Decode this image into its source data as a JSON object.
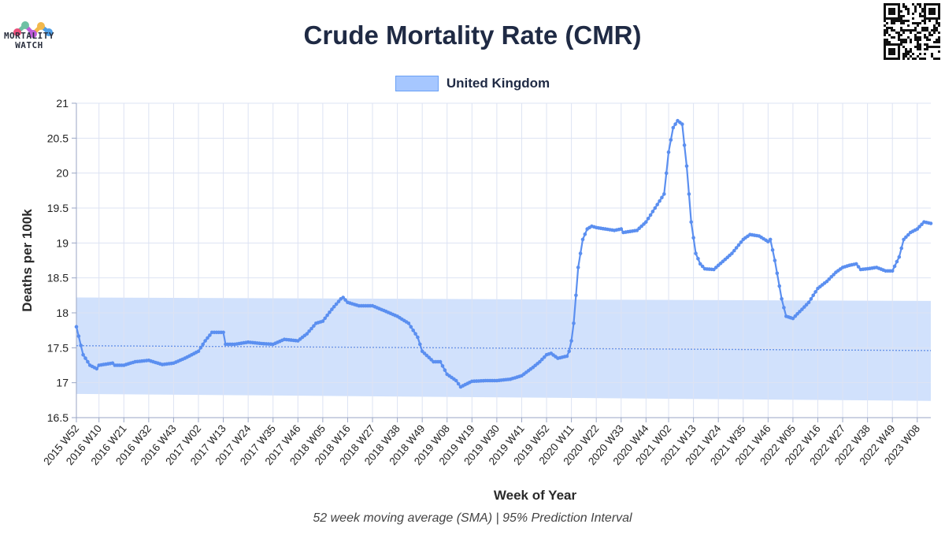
{
  "brand": {
    "logo_line1": "MORTALITY",
    "logo_line2": "WATCH",
    "qr_icon": "qr-code-icon"
  },
  "colors": {
    "series": "#5b8ff0",
    "band": "#c9dcfb",
    "baseline": "#6b95e8",
    "grid": "#dde3f3",
    "text": "#1f2a44"
  },
  "chart_data": {
    "type": "line",
    "title": "Crude Mortality Rate (CMR)",
    "xlabel": "Week of Year",
    "ylabel": "Deaths per 100k",
    "caption": "52 week moving average (SMA) | 95% Prediction Interval",
    "legend": {
      "position": "top-center",
      "entries": [
        "United Kingdom"
      ]
    },
    "grid": true,
    "ylim": [
      16.5,
      21
    ],
    "yticks": [
      "16.5",
      "17",
      "17.5",
      "18",
      "18.5",
      "19",
      "19.5",
      "20",
      "20.5",
      "21"
    ],
    "x_range": [
      "2015 W52",
      "2023 W14"
    ],
    "x_tick_labels": [
      "2015 W52",
      "2016 W10",
      "2016 W21",
      "2016 W32",
      "2016 W43",
      "2017 W02",
      "2017 W13",
      "2017 W24",
      "2017 W35",
      "2017 W46",
      "2018 W05",
      "2018 W16",
      "2018 W27",
      "2018 W38",
      "2018 W49",
      "2019 W08",
      "2019 W19",
      "2019 W30",
      "2019 W41",
      "2019 W52",
      "2020 W11",
      "2020 W22",
      "2020 W33",
      "2020 W44",
      "2021 W02",
      "2021 W13",
      "2021 W24",
      "2021 W35",
      "2021 W46",
      "2022 W05",
      "2022 W16",
      "2022 W27",
      "2022 W38",
      "2022 W49",
      "2023 W08"
    ],
    "series": [
      {
        "name": "United Kingdom",
        "anchors": [
          [
            "2015 W52",
            17.8
          ],
          [
            "2016 W03",
            17.4
          ],
          [
            "2016 W06",
            17.25
          ],
          [
            "2016 W09",
            17.2
          ],
          [
            "2016 W10",
            17.25
          ],
          [
            "2016 W16",
            17.28
          ],
          [
            "2016 W17",
            17.25
          ],
          [
            "2016 W21",
            17.25
          ],
          [
            "2016 W26",
            17.3
          ],
          [
            "2016 W32",
            17.32
          ],
          [
            "2016 W38",
            17.26
          ],
          [
            "2016 W43",
            17.28
          ],
          [
            "2016 W48",
            17.35
          ],
          [
            "2017 W02",
            17.45
          ],
          [
            "2017 W05",
            17.6
          ],
          [
            "2017 W08",
            17.72
          ],
          [
            "2017 W13",
            17.72
          ],
          [
            "2017 W14",
            17.55
          ],
          [
            "2017 W18",
            17.55
          ],
          [
            "2017 W24",
            17.58
          ],
          [
            "2017 W30",
            17.56
          ],
          [
            "2017 W35",
            17.55
          ],
          [
            "2017 W40",
            17.62
          ],
          [
            "2017 W46",
            17.6
          ],
          [
            "2017 W50",
            17.7
          ],
          [
            "2018 W02",
            17.85
          ],
          [
            "2018 W05",
            17.88
          ],
          [
            "2018 W09",
            18.05
          ],
          [
            "2018 W13",
            18.2
          ],
          [
            "2018 W14",
            18.22
          ],
          [
            "2018 W16",
            18.15
          ],
          [
            "2018 W21",
            18.1
          ],
          [
            "2018 W27",
            18.1
          ],
          [
            "2018 W33",
            18.02
          ],
          [
            "2018 W38",
            17.95
          ],
          [
            "2018 W43",
            17.85
          ],
          [
            "2018 W47",
            17.65
          ],
          [
            "2018 W49",
            17.45
          ],
          [
            "2019 W02",
            17.3
          ],
          [
            "2019 W05",
            17.3
          ],
          [
            "2019 W08",
            17.12
          ],
          [
            "2019 W12",
            17.03
          ],
          [
            "2019 W14",
            16.94
          ],
          [
            "2019 W19",
            17.02
          ],
          [
            "2019 W25",
            17.03
          ],
          [
            "2019 W30",
            17.03
          ],
          [
            "2019 W36",
            17.05
          ],
          [
            "2019 W41",
            17.1
          ],
          [
            "2019 W46",
            17.22
          ],
          [
            "2019 W49",
            17.3
          ],
          [
            "2019 W52",
            17.4
          ],
          [
            "2020 W02",
            17.42
          ],
          [
            "2020 W05",
            17.35
          ],
          [
            "2020 W09",
            17.38
          ],
          [
            "2020 W10",
            17.45
          ],
          [
            "2020 W11",
            17.6
          ],
          [
            "2020 W12",
            17.85
          ],
          [
            "2020 W14",
            18.65
          ],
          [
            "2020 W16",
            19.05
          ],
          [
            "2020 W18",
            19.2
          ],
          [
            "2020 W20",
            19.24
          ],
          [
            "2020 W22",
            19.22
          ],
          [
            "2020 W26",
            19.2
          ],
          [
            "2020 W30",
            19.18
          ],
          [
            "2020 W33",
            19.2
          ],
          [
            "2020 W34",
            19.15
          ],
          [
            "2020 W40",
            19.18
          ],
          [
            "2020 W44",
            19.3
          ],
          [
            "2020 W48",
            19.5
          ],
          [
            "2020 W50",
            19.6
          ],
          [
            "2020 W52",
            19.7
          ],
          [
            "2021 W02",
            20.3
          ],
          [
            "2021 W04",
            20.65
          ],
          [
            "2021 W06",
            20.75
          ],
          [
            "2021 W08",
            20.7
          ],
          [
            "2021 W10",
            20.1
          ],
          [
            "2021 W12",
            19.3
          ],
          [
            "2021 W14",
            18.85
          ],
          [
            "2021 W16",
            18.7
          ],
          [
            "2021 W18",
            18.63
          ],
          [
            "2021 W22",
            18.62
          ],
          [
            "2021 W24",
            18.68
          ],
          [
            "2021 W30",
            18.85
          ],
          [
            "2021 W35",
            19.05
          ],
          [
            "2021 W38",
            19.12
          ],
          [
            "2021 W42",
            19.1
          ],
          [
            "2021 W46",
            19.02
          ],
          [
            "2021 W47",
            19.05
          ],
          [
            "2021 W49",
            18.75
          ],
          [
            "2021 W52",
            18.2
          ],
          [
            "2022 W02",
            17.95
          ],
          [
            "2022 W05",
            17.92
          ],
          [
            "2022 W09",
            18.05
          ],
          [
            "2022 W12",
            18.15
          ],
          [
            "2022 W16",
            18.35
          ],
          [
            "2022 W20",
            18.45
          ],
          [
            "2022 W24",
            18.58
          ],
          [
            "2022 W27",
            18.65
          ],
          [
            "2022 W30",
            18.68
          ],
          [
            "2022 W33",
            18.7
          ],
          [
            "2022 W35",
            18.62
          ],
          [
            "2022 W38",
            18.63
          ],
          [
            "2022 W42",
            18.65
          ],
          [
            "2022 W46",
            18.6
          ],
          [
            "2022 W49",
            18.6
          ],
          [
            "2022 W52",
            18.8
          ],
          [
            "2023 W02",
            19.05
          ],
          [
            "2023 W05",
            19.15
          ],
          [
            "2023 W08",
            19.2
          ],
          [
            "2023 W11",
            19.3
          ],
          [
            "2023 W14",
            19.28
          ]
        ]
      }
    ],
    "baseline": [
      [
        "2015 W52",
        17.53
      ],
      [
        "2023 W14",
        17.46
      ]
    ],
    "prediction_interval": {
      "upper": [
        [
          "2015 W52",
          18.22
        ],
        [
          "2023 W14",
          18.17
        ]
      ],
      "lower": [
        [
          "2015 W52",
          16.84
        ],
        [
          "2023 W14",
          16.74
        ]
      ]
    }
  }
}
